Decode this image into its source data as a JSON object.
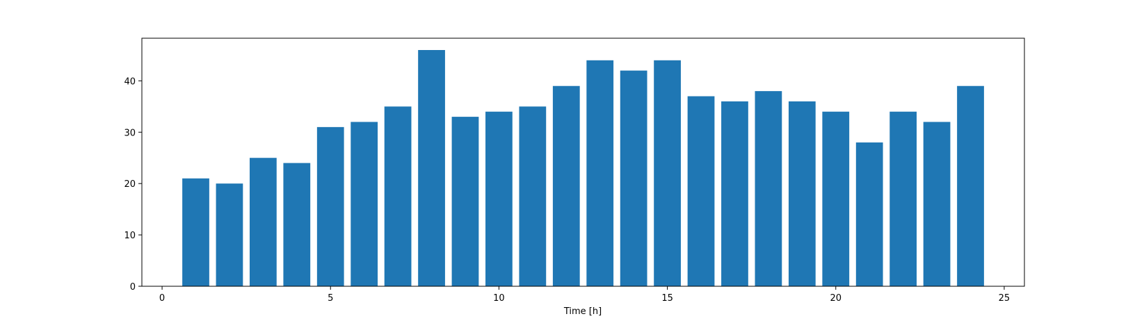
{
  "chart_data": {
    "type": "bar",
    "title": "",
    "xlabel": "Time [h]",
    "ylabel": "",
    "x": [
      1,
      2,
      3,
      4,
      5,
      6,
      7,
      8,
      9,
      10,
      11,
      12,
      13,
      14,
      15,
      16,
      17,
      18,
      19,
      20,
      21,
      22,
      23,
      24
    ],
    "values": [
      21,
      20,
      25,
      24,
      31,
      32,
      35,
      46,
      33,
      34,
      35,
      39,
      44,
      42,
      44,
      37,
      36,
      38,
      36,
      34,
      28,
      34,
      32,
      39
    ],
    "bar_width": 0.8,
    "xlim": [
      -0.6,
      25.6
    ],
    "ylim": [
      0,
      48.3
    ],
    "xticks": [
      0,
      5,
      10,
      15,
      20,
      25
    ],
    "yticks": [
      0,
      10,
      20,
      30,
      40
    ],
    "grid": false,
    "bar_color": "#1f77b4"
  }
}
